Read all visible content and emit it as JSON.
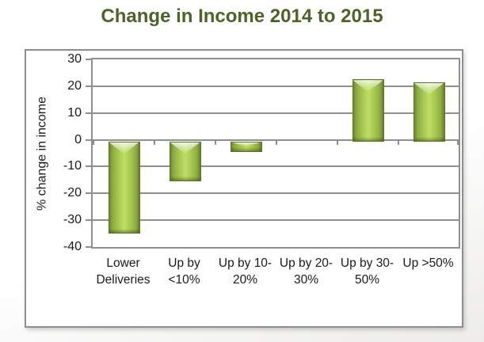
{
  "page": {
    "title": "Change in Income 2014 to 2015"
  },
  "chart_data": {
    "type": "bar",
    "title": "Change in Income 2014 to 2015",
    "categories": [
      "Lower Deliveries",
      "Up by <10%",
      "Up by 10-20%",
      "Up by 20-30%",
      "Up by 30-50%",
      "Up >50%"
    ],
    "values": [
      -34.5,
      -15,
      -4,
      0,
      22.5,
      21.5
    ],
    "tick_label_lines": [
      [
        "Lower",
        "Deliveries"
      ],
      [
        "Up by",
        "<10%"
      ],
      [
        "Up  by 10-",
        "20%"
      ],
      [
        "Up by 20-",
        "30%"
      ],
      [
        "Up by 30-",
        "50%"
      ],
      [
        "Up >50%"
      ]
    ],
    "xlabel": "",
    "ylabel": "% change in income",
    "ylim": [
      -40,
      30
    ],
    "yticks": [
      30,
      20,
      10,
      0,
      -10,
      -20,
      -30,
      -40
    ],
    "grid": true,
    "legend": false,
    "colors": {
      "bar_center": "#bede65",
      "bar_mid": "#9cbc49",
      "bar_edge": "#6d8a31",
      "bar_border": "#5c7527",
      "title_text": "#4f6228",
      "gridline": "#8f8f8f",
      "axis_text": "#1a1a1a",
      "chart_border": "#8e8e8e",
      "plot_background": "#ffffff"
    }
  }
}
